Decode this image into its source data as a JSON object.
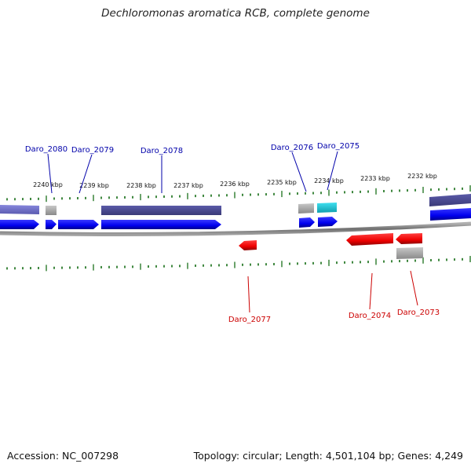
{
  "title": "Dechloromonas aromatica RCB, complete genome",
  "footer": {
    "accession": "Accession: NC_007298",
    "summary": "Topology: circular; Length: 4,501,104 bp; Genes: 4,249"
  },
  "colors": {
    "forward_gene": "#0000ee",
    "reverse_gene": "#ee0000",
    "forward_label": "#0000aa",
    "reverse_label": "#cc0000",
    "tick": "#2a7a2a",
    "cog_dark_purple": "#4a4a90",
    "cog_light_purple": "#7070c8",
    "cog_cyan": "#20c0d0",
    "cog_gray": "#a8a8a8",
    "backbone": "#808080"
  },
  "scale_labels": [
    "2240 kbp",
    "2239 kbp",
    "2238 kbp",
    "2237 kbp",
    "2236 kbp",
    "2235 kbp",
    "2234 kbp",
    "2233 kbp",
    "2232 kbp"
  ],
  "forward_genes": [
    {
      "label": "Daro_2080"
    },
    {
      "label": "Daro_2079"
    },
    {
      "label": "Daro_2078"
    },
    {
      "label": "Daro_2076"
    },
    {
      "label": "Daro_2075"
    }
  ],
  "reverse_genes": [
    {
      "label": "Daro_2077"
    },
    {
      "label": "Daro_2074"
    },
    {
      "label": "Daro_2073"
    }
  ]
}
